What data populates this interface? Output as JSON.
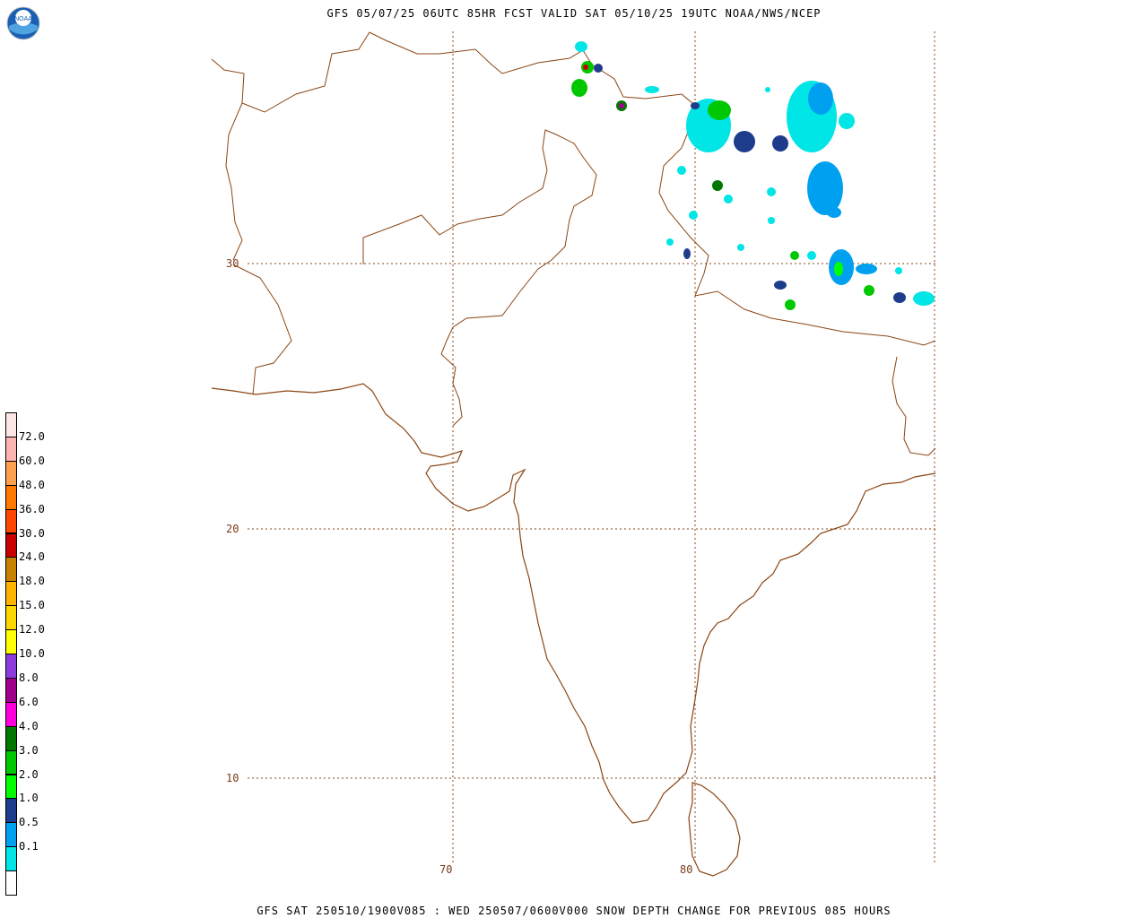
{
  "header": {
    "title": "GFS 05/07/25 06UTC 85HR FCST VALID SAT 05/10/25 19UTC NOAA/NWS/NCEP",
    "logo_text": "NOAA"
  },
  "footer": {
    "title": "GFS SAT 250510/1900V085 : WED 250507/0600V000 SNOW DEPTH CHANGE FOR PREVIOUS 085 HOURS"
  },
  "map": {
    "lat_labels": [
      "30",
      "20",
      "10"
    ],
    "lon_labels": [
      "70",
      "80"
    ],
    "grid_color": "#8b4513",
    "coast_color": "#8b4513"
  },
  "legend": {
    "items": [
      {
        "label": "",
        "color": "#ffffff"
      },
      {
        "label": "0.1",
        "color": "#00e5e5"
      },
      {
        "label": "0.5",
        "color": "#00a0f0"
      },
      {
        "label": "1.0",
        "color": "#1e3c8c"
      },
      {
        "label": "2.0",
        "color": "#00ff00"
      },
      {
        "label": "3.0",
        "color": "#00c800"
      },
      {
        "label": "4.0",
        "color": "#007800"
      },
      {
        "label": "6.0",
        "color": "#ff00dc"
      },
      {
        "label": "8.0",
        "color": "#a0008c"
      },
      {
        "label": "10.0",
        "color": "#8c3cdc"
      },
      {
        "label": "12.0",
        "color": "#ffff00"
      },
      {
        "label": "15.0",
        "color": "#ffd700"
      },
      {
        "label": "18.0",
        "color": "#ffb400"
      },
      {
        "label": "24.0",
        "color": "#c88200"
      },
      {
        "label": "30.0",
        "color": "#c80000"
      },
      {
        "label": "36.0",
        "color": "#ff4600"
      },
      {
        "label": "48.0",
        "color": "#ff7800"
      },
      {
        "label": "60.0",
        "color": "#ffa050"
      },
      {
        "label": "72.0",
        "color": "#ffb4b4"
      },
      {
        "label": "",
        "color": "#ffe6e6"
      }
    ]
  }
}
